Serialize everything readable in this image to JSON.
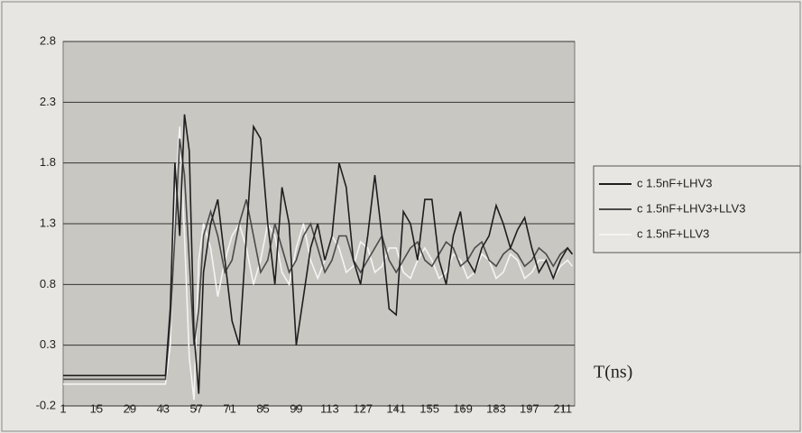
{
  "chart_data": {
    "type": "line",
    "annotation": "T(ns)",
    "x": [
      1,
      44,
      46,
      48,
      50,
      52,
      54,
      56,
      58,
      60,
      63,
      66,
      69,
      72,
      75,
      78,
      81,
      84,
      87,
      90,
      93,
      96,
      99,
      102,
      105,
      108,
      111,
      114,
      117,
      120,
      123,
      126,
      129,
      132,
      135,
      138,
      141,
      144,
      147,
      150,
      153,
      156,
      159,
      162,
      165,
      168,
      171,
      174,
      177,
      180,
      183,
      186,
      189,
      192,
      195,
      198,
      201,
      204,
      207,
      210,
      213,
      215
    ],
    "xlim": [
      1,
      216
    ],
    "xticks": [
      1,
      15,
      29,
      43,
      57,
      71,
      85,
      99,
      113,
      127,
      141,
      155,
      169,
      183,
      197,
      211
    ],
    "ylim": [
      -0.2,
      2.8
    ],
    "yticks": [
      -0.2,
      0.3,
      0.8,
      1.3,
      1.8,
      2.3,
      2.8
    ],
    "grid": true,
    "legend": "right",
    "series": [
      {
        "name": "c 1.5nF+LHV3",
        "color": "#1e1e1e",
        "values": [
          0.05,
          0.05,
          0.6,
          1.8,
          1.2,
          2.2,
          1.9,
          0.4,
          -0.1,
          0.9,
          1.3,
          1.5,
          1.0,
          0.5,
          0.3,
          1.2,
          2.1,
          2.0,
          1.3,
          0.8,
          1.6,
          1.3,
          0.3,
          0.7,
          1.1,
          1.3,
          1.0,
          1.2,
          1.8,
          1.6,
          1.0,
          0.8,
          1.2,
          1.7,
          1.2,
          0.6,
          0.55,
          1.4,
          1.3,
          1.0,
          1.5,
          1.5,
          1.0,
          0.8,
          1.2,
          1.4,
          1.0,
          0.9,
          1.1,
          1.2,
          1.45,
          1.3,
          1.1,
          1.25,
          1.35,
          1.1,
          0.9,
          1.0,
          0.85,
          1.0,
          1.1,
          1.05
        ]
      },
      {
        "name": "c 1.5nF+LHV3+LLV3",
        "color": "#4a4a4a",
        "values": [
          0.02,
          0.02,
          0.5,
          1.2,
          2.0,
          1.7,
          1.0,
          0.3,
          0.6,
          1.2,
          1.4,
          1.2,
          0.9,
          1.0,
          1.3,
          1.5,
          1.2,
          0.9,
          1.0,
          1.3,
          1.1,
          0.9,
          1.0,
          1.2,
          1.3,
          1.1,
          0.9,
          1.0,
          1.2,
          1.2,
          1.0,
          0.9,
          1.0,
          1.1,
          1.2,
          1.0,
          0.9,
          1.0,
          1.1,
          1.15,
          1.0,
          0.95,
          1.05,
          1.15,
          1.1,
          0.95,
          1.0,
          1.1,
          1.15,
          1.0,
          0.95,
          1.05,
          1.1,
          1.05,
          0.95,
          1.0,
          1.1,
          1.05,
          0.95,
          1.05,
          1.1,
          1.05
        ]
      },
      {
        "name": "c 1.5nF+LLV3",
        "color": "#f4f4f4",
        "values": [
          -0.02,
          -0.02,
          0.3,
          1.5,
          2.1,
          1.2,
          0.2,
          -0.15,
          1.0,
          1.3,
          1.1,
          0.7,
          1.0,
          1.2,
          1.3,
          1.1,
          0.8,
          1.0,
          1.3,
          1.2,
          0.9,
          0.8,
          1.1,
          1.3,
          1.0,
          0.85,
          1.0,
          1.2,
          1.1,
          0.9,
          0.95,
          1.15,
          1.1,
          0.9,
          0.95,
          1.1,
          1.1,
          0.9,
          0.85,
          1.0,
          1.1,
          1.0,
          0.85,
          0.9,
          1.05,
          1.0,
          0.85,
          0.9,
          1.05,
          1.0,
          0.85,
          0.9,
          1.05,
          1.0,
          0.85,
          0.9,
          1.0,
          1.0,
          0.85,
          0.95,
          1.0,
          0.95
        ]
      }
    ]
  }
}
